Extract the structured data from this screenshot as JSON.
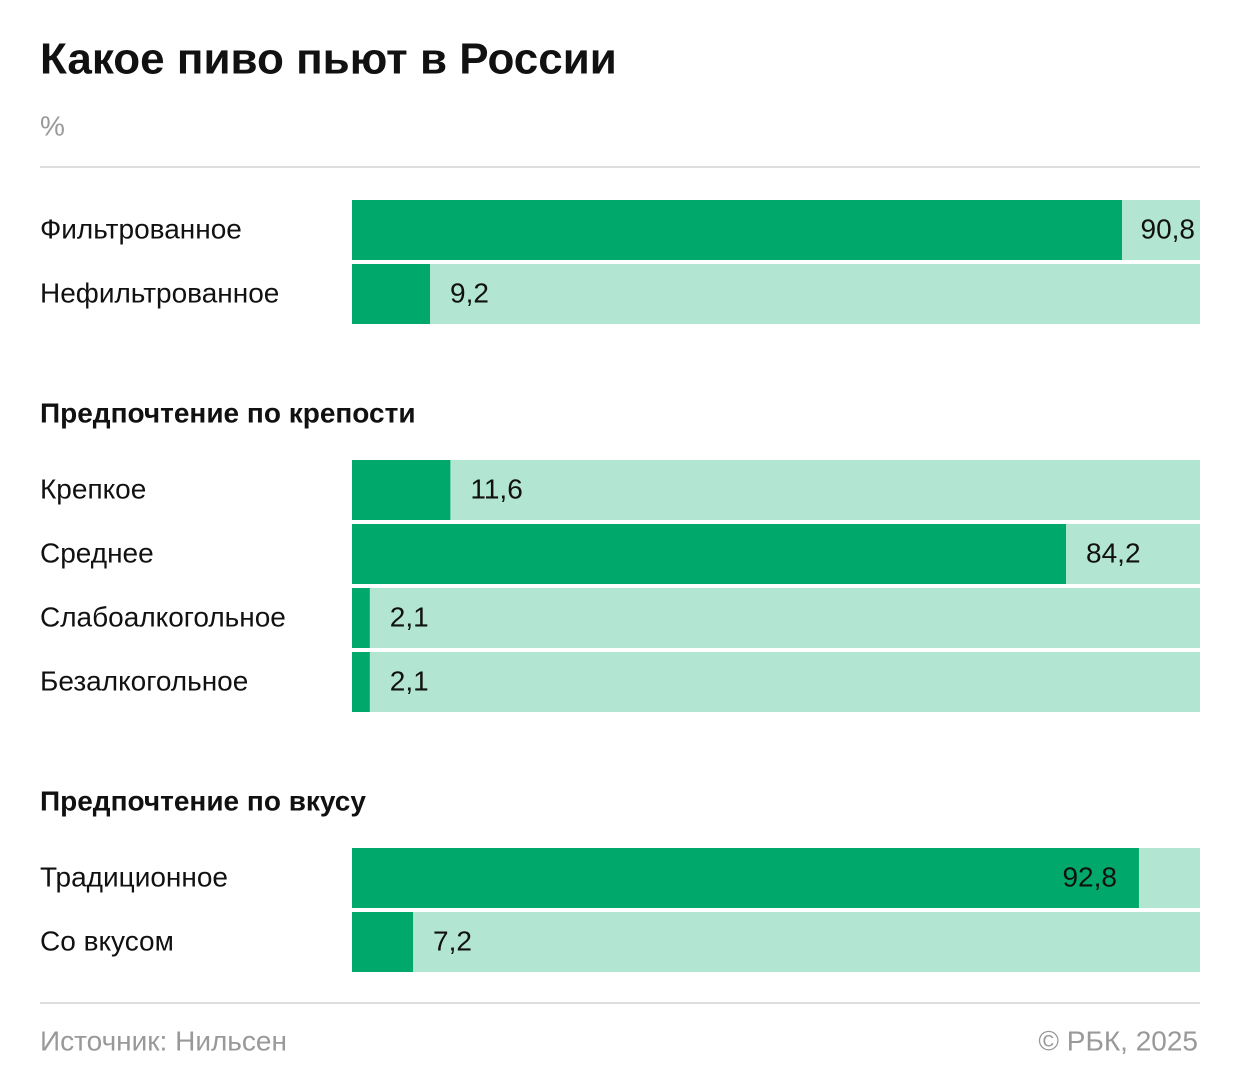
{
  "title": "Какое пиво пьют в России",
  "subtitle": "%",
  "source": "Источник: Нильсен",
  "credit": "© РБК, 2025",
  "chart_data": [
    {
      "type": "bar",
      "orientation": "horizontal",
      "xlim": [
        0,
        100
      ],
      "color": "#00a86b",
      "track_color": "#b3e6d2",
      "categories": [
        "Фильтрованное",
        "Нефильтрованное"
      ],
      "values": [
        90.8,
        9.2
      ],
      "value_labels": [
        "90,8",
        "9,2"
      ]
    },
    {
      "type": "bar",
      "orientation": "horizontal",
      "title": "Предпочтение по крепости",
      "xlim": [
        0,
        100
      ],
      "color": "#00a86b",
      "track_color": "#b3e6d2",
      "categories": [
        "Крепкое",
        "Среднее",
        "Слабоалкогольное",
        "Безалкогольное"
      ],
      "values": [
        11.6,
        84.2,
        2.1,
        2.1
      ],
      "value_labels": [
        "11,6",
        "84,2",
        "2,1",
        "2,1"
      ]
    },
    {
      "type": "bar",
      "orientation": "horizontal",
      "title": "Предпочтение по вкусу",
      "xlim": [
        0,
        100
      ],
      "color": "#00a86b",
      "track_color": "#b3e6d2",
      "categories": [
        "Традиционное",
        "Со вкусом"
      ],
      "values": [
        92.8,
        7.2
      ],
      "value_labels": [
        "92,8",
        "7,2"
      ]
    }
  ]
}
